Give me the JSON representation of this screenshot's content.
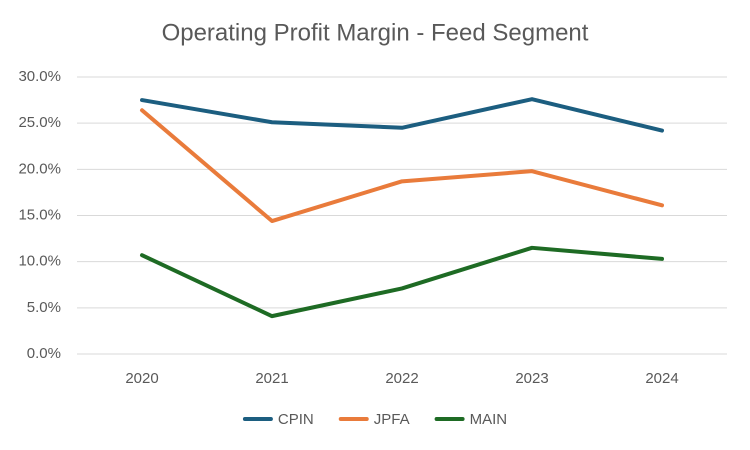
{
  "chart_data": {
    "type": "line",
    "title": "Operating Profit Margin - Feed Segment",
    "categories": [
      "2020",
      "2021",
      "2022",
      "2023",
      "2024"
    ],
    "series": [
      {
        "name": "CPIN",
        "color": "#1c5e80",
        "values": [
          27.5,
          25.1,
          24.5,
          27.6,
          24.2
        ]
      },
      {
        "name": "JPFA",
        "color": "#e97b3b",
        "values": [
          26.4,
          14.4,
          18.7,
          19.8,
          16.1
        ]
      },
      {
        "name": "MAIN",
        "color": "#1e6b24",
        "values": [
          10.7,
          4.1,
          7.1,
          11.5,
          10.3
        ]
      }
    ],
    "ylim": [
      0,
      30
    ],
    "yticks": [
      {
        "value": 0,
        "label": "0.0%"
      },
      {
        "value": 5,
        "label": "5.0%"
      },
      {
        "value": 10,
        "label": "10.0%"
      },
      {
        "value": 15,
        "label": "15.0%"
      },
      {
        "value": 20,
        "label": "20.0%"
      },
      {
        "value": 25,
        "label": "25.0%"
      },
      {
        "value": 30,
        "label": "30.0%"
      }
    ],
    "grid": true,
    "legend": "bottom"
  }
}
